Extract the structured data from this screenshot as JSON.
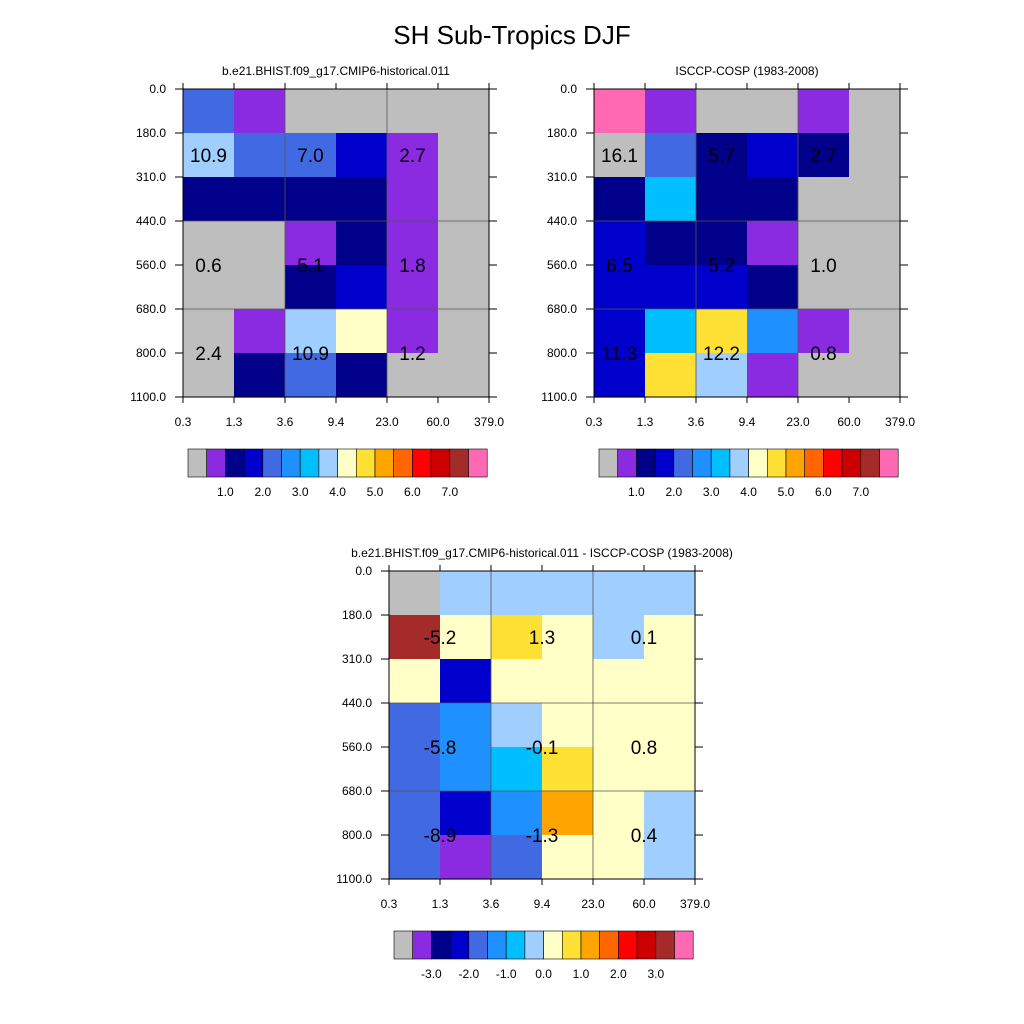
{
  "title": "SH Sub-Tropics DJF",
  "chart_data": [
    {
      "type": "heatmap",
      "title": "b.e21.BHIST.f09_g17.CMIP6-historical.011",
      "x_ticks": [
        "0.3",
        "1.3",
        "3.6",
        "9.4",
        "23.0",
        "60.0",
        "379.0"
      ],
      "y_ticks": [
        "0.0",
        "180.0",
        "310.0",
        "440.0",
        "560.0",
        "680.0",
        "800.0",
        "1100.0"
      ],
      "cell_colors": [
        [
          "#4169e1",
          "#8a2be2",
          "#bebebe",
          "#bebebe",
          "#bebebe",
          "#bebebe"
        ],
        [
          "#a0cfff",
          "#4169e1",
          "#4169e1",
          "#0000cd",
          "#8a2be2",
          "#bebebe"
        ],
        [
          "#00008b",
          "#00008b",
          "#00008b",
          "#00008b",
          "#8a2be2",
          "#bebebe"
        ],
        [
          "#bebebe",
          "#bebebe",
          "#8a2be2",
          "#00008b",
          "#8a2be2",
          "#bebebe"
        ],
        [
          "#bebebe",
          "#bebebe",
          "#00008b",
          "#0000cd",
          "#8a2be2",
          "#bebebe"
        ],
        [
          "#bebebe",
          "#8a2be2",
          "#a0cfff",
          "#ffffc8",
          "#8a2be2",
          "#bebebe"
        ],
        [
          "#bebebe",
          "#00008b",
          "#4169e1",
          "#00008b",
          "#bebebe",
          "#bebebe"
        ]
      ],
      "annotations": [
        {
          "col": 0.5,
          "row": 1.5,
          "text": "10.9"
        },
        {
          "col": 2.5,
          "row": 1.5,
          "text": "7.0"
        },
        {
          "col": 4.5,
          "row": 1.5,
          "text": "2.7"
        },
        {
          "col": 0.5,
          "row": 4.0,
          "text": "0.6"
        },
        {
          "col": 2.5,
          "row": 4.0,
          "text": "5.1"
        },
        {
          "col": 4.5,
          "row": 4.0,
          "text": "1.8"
        },
        {
          "col": 0.5,
          "row": 6.0,
          "text": "2.4"
        },
        {
          "col": 2.5,
          "row": 6.0,
          "text": "10.9"
        },
        {
          "col": 4.5,
          "row": 6.0,
          "text": "1.2"
        }
      ],
      "colorbar": {
        "colors": [
          "#bebebe",
          "#8a2be2",
          "#00008b",
          "#0000cd",
          "#4169e1",
          "#1e90ff",
          "#00bfff",
          "#a0cfff",
          "#ffffc8",
          "#ffe135",
          "#ffa500",
          "#ff6600",
          "#ff0000",
          "#cd0000",
          "#a52a2a",
          "#ff69b4"
        ],
        "labels": [
          "1.0",
          "2.0",
          "3.0",
          "4.0",
          "5.0",
          "6.0",
          "7.0"
        ]
      }
    },
    {
      "type": "heatmap",
      "title": "ISCCP-COSP (1983-2008)",
      "x_ticks": [
        "0.3",
        "1.3",
        "3.6",
        "9.4",
        "23.0",
        "60.0",
        "379.0"
      ],
      "y_ticks": [
        "0.0",
        "180.0",
        "310.0",
        "440.0",
        "560.0",
        "680.0",
        "800.0",
        "1100.0"
      ],
      "cell_colors": [
        [
          "#ff69b4",
          "#8a2be2",
          "#bebebe",
          "#bebebe",
          "#8a2be2",
          "#bebebe"
        ],
        [
          "#bebebe",
          "#4169e1",
          "#00008b",
          "#0000cd",
          "#00008b",
          "#bebebe"
        ],
        [
          "#00008b",
          "#00bfff",
          "#00008b",
          "#00008b",
          "#bebebe",
          "#bebebe"
        ],
        [
          "#0000cd",
          "#00008b",
          "#00008b",
          "#8a2be2",
          "#bebebe",
          "#bebebe"
        ],
        [
          "#0000cd",
          "#0000cd",
          "#0000cd",
          "#00008b",
          "#bebebe",
          "#bebebe"
        ],
        [
          "#0000cd",
          "#00bfff",
          "#ffe135",
          "#1e90ff",
          "#8a2be2",
          "#bebebe"
        ],
        [
          "#0000cd",
          "#ffe135",
          "#a0cfff",
          "#8a2be2",
          "#bebebe",
          "#bebebe"
        ]
      ],
      "annotations": [
        {
          "col": 0.5,
          "row": 1.5,
          "text": "16.1"
        },
        {
          "col": 2.5,
          "row": 1.5,
          "text": "5.7"
        },
        {
          "col": 4.5,
          "row": 1.5,
          "text": "2.7"
        },
        {
          "col": 0.5,
          "row": 4.0,
          "text": "6.5"
        },
        {
          "col": 2.5,
          "row": 4.0,
          "text": "5.2"
        },
        {
          "col": 4.5,
          "row": 4.0,
          "text": "1.0"
        },
        {
          "col": 0.5,
          "row": 6.0,
          "text": "11.3"
        },
        {
          "col": 2.5,
          "row": 6.0,
          "text": "12.2"
        },
        {
          "col": 4.5,
          "row": 6.0,
          "text": "0.8"
        }
      ],
      "colorbar": {
        "colors": [
          "#bebebe",
          "#8a2be2",
          "#00008b",
          "#0000cd",
          "#4169e1",
          "#1e90ff",
          "#00bfff",
          "#a0cfff",
          "#ffffc8",
          "#ffe135",
          "#ffa500",
          "#ff6600",
          "#ff0000",
          "#cd0000",
          "#a52a2a",
          "#ff69b4"
        ],
        "labels": [
          "1.0",
          "2.0",
          "3.0",
          "4.0",
          "5.0",
          "6.0",
          "7.0"
        ]
      }
    },
    {
      "type": "heatmap",
      "title": "b.e21.BHIST.f09_g17.CMIP6-historical.011 - ISCCP-COSP (1983-2008)",
      "x_ticks": [
        "0.3",
        "1.3",
        "3.6",
        "9.4",
        "23.0",
        "60.0",
        "379.0"
      ],
      "y_ticks": [
        "0.0",
        "180.0",
        "310.0",
        "440.0",
        "560.0",
        "680.0",
        "800.0",
        "1100.0"
      ],
      "cell_colors": [
        [
          "#bebebe",
          "#a0cfff",
          "#a0cfff",
          "#a0cfff",
          "#a0cfff",
          "#a0cfff"
        ],
        [
          "#a52a2a",
          "#ffffc8",
          "#ffe135",
          "#ffffc8",
          "#a0cfff",
          "#ffffc8"
        ],
        [
          "#ffffc8",
          "#0000cd",
          "#ffffc8",
          "#ffffc8",
          "#ffffc8",
          "#ffffc8"
        ],
        [
          "#4169e1",
          "#1e90ff",
          "#a0cfff",
          "#ffffc8",
          "#ffffc8",
          "#ffffc8"
        ],
        [
          "#4169e1",
          "#1e90ff",
          "#00bfff",
          "#ffe135",
          "#ffffc8",
          "#ffffc8"
        ],
        [
          "#4169e1",
          "#0000cd",
          "#1e90ff",
          "#ffa500",
          "#ffffc8",
          "#a0cfff"
        ],
        [
          "#4169e1",
          "#8a2be2",
          "#4169e1",
          "#ffffc8",
          "#ffffc8",
          "#a0cfff"
        ]
      ],
      "annotations": [
        {
          "col": 1.0,
          "row": 1.5,
          "text": "-5.2"
        },
        {
          "col": 3.0,
          "row": 1.5,
          "text": "1.3"
        },
        {
          "col": 5.0,
          "row": 1.5,
          "text": "0.1"
        },
        {
          "col": 1.0,
          "row": 4.0,
          "text": "-5.8"
        },
        {
          "col": 3.0,
          "row": 4.0,
          "text": "-0.1"
        },
        {
          "col": 5.0,
          "row": 4.0,
          "text": "0.8"
        },
        {
          "col": 1.0,
          "row": 6.0,
          "text": "-8.9"
        },
        {
          "col": 3.0,
          "row": 6.0,
          "text": "-1.3"
        },
        {
          "col": 5.0,
          "row": 6.0,
          "text": "0.4"
        }
      ],
      "colorbar": {
        "colors": [
          "#bebebe",
          "#8a2be2",
          "#00008b",
          "#0000cd",
          "#4169e1",
          "#1e90ff",
          "#00bfff",
          "#a0cfff",
          "#ffffc8",
          "#ffe135",
          "#ffa500",
          "#ff6600",
          "#ff0000",
          "#cd0000",
          "#a52a2a",
          "#ff69b4"
        ],
        "labels": [
          "-3.0",
          "-2.0",
          "-1.0",
          "0.0",
          "1.0",
          "2.0",
          "3.0"
        ]
      }
    }
  ]
}
